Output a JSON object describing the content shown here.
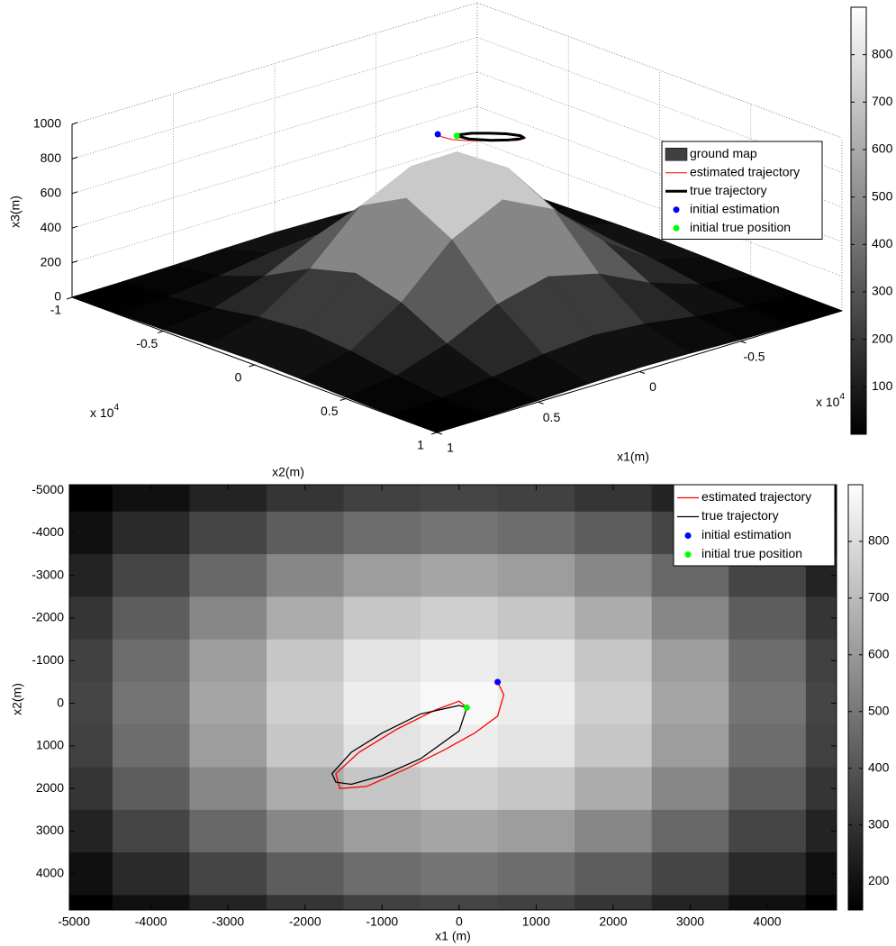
{
  "chart_data": [
    {
      "type": "surface3d",
      "xlabel": "x1(m)",
      "ylabel": "x2(m)",
      "zlabel": "x3(m)",
      "xlim": [
        -1,
        1
      ],
      "ylim": [
        -1,
        1
      ],
      "zlim": [
        0,
        1000
      ],
      "xticks": [
        -0.5,
        0,
        0.5,
        1
      ],
      "yticks": [
        -1,
        -0.5,
        0,
        0.5,
        1
      ],
      "zticks": [
        0,
        200,
        400,
        600,
        800,
        1000
      ],
      "x_multiplier": {
        "base": "x 10",
        "exponent": 4
      },
      "y_multiplier": {
        "base": "x 10",
        "exponent": 4
      },
      "clim": [
        0,
        900
      ],
      "cticks": [
        100,
        200,
        300,
        400,
        500,
        600,
        700,
        800
      ],
      "grid": true,
      "legend": "right",
      "surface": {
        "name": "ground map",
        "color": "#404040",
        "x": [
          -1,
          -0.75,
          -0.5,
          -0.25,
          0,
          0.25,
          0.5,
          0.75,
          1
        ],
        "y": [
          -1,
          -0.75,
          -0.5,
          -0.25,
          0,
          0.25,
          0.5,
          0.75,
          1
        ],
        "z": [
          [
            1,
            3,
            9,
            18,
            23,
            18,
            9,
            3,
            1
          ],
          [
            3,
            14,
            45,
            90,
            113,
            90,
            45,
            14,
            3
          ],
          [
            9,
            45,
            142,
            282,
            354,
            282,
            142,
            45,
            9
          ],
          [
            18,
            90,
            282,
            558,
            700,
            558,
            282,
            90,
            18
          ],
          [
            23,
            113,
            354,
            700,
            880,
            700,
            354,
            113,
            23
          ],
          [
            18,
            90,
            282,
            558,
            700,
            558,
            282,
            90,
            18
          ],
          [
            9,
            45,
            142,
            282,
            354,
            282,
            142,
            45,
            9
          ],
          [
            3,
            14,
            45,
            90,
            113,
            90,
            45,
            14,
            3
          ],
          [
            1,
            3,
            9,
            18,
            23,
            18,
            9,
            3,
            1
          ]
        ]
      },
      "series": [
        {
          "name": "estimated trajectory",
          "color": "#ff0000",
          "linewidth": 1,
          "x": [
            0.05,
            0.058,
            0.05,
            0.02,
            -0.02,
            -0.07,
            -0.12,
            -0.155,
            -0.16,
            -0.13,
            -0.08,
            -0.03,
            0,
            0.01
          ],
          "y": [
            -0.05,
            -0.02,
            0.03,
            0.07,
            0.11,
            0.155,
            0.195,
            0.2,
            0.165,
            0.115,
            0.06,
            0.015,
            -0.005,
            0.01
          ],
          "z": [
            980,
            980,
            980,
            980,
            980,
            980,
            980,
            980,
            980,
            980,
            980,
            980,
            980,
            980
          ]
        },
        {
          "name": "true trajectory",
          "color": "#000000",
          "linewidth": 3,
          "x": [
            0.01,
            0,
            -0.05,
            -0.1,
            -0.14,
            -0.165,
            -0.16,
            -0.14,
            -0.1,
            -0.05,
            0,
            0.01
          ],
          "y": [
            0.01,
            0.005,
            0.025,
            0.07,
            0.115,
            0.165,
            0.185,
            0.19,
            0.17,
            0.13,
            0.065,
            0.01
          ],
          "z": [
            980,
            980,
            980,
            980,
            980,
            980,
            980,
            980,
            980,
            980,
            980,
            980
          ]
        },
        {
          "name": "initial estimation",
          "color": "#0000ff",
          "x": [
            0.05
          ],
          "y": [
            -0.05
          ],
          "z": [
            980
          ]
        },
        {
          "name": "initial true position",
          "color": "#00ff00",
          "x": [
            0.01
          ],
          "y": [
            0.01
          ],
          "z": [
            980
          ]
        }
      ]
    },
    {
      "type": "heatmap",
      "xlabel": "x1 (m)",
      "ylabel": "x2(m)",
      "xlim": [
        -5060,
        4900
      ],
      "ylim": [
        -5130,
        4850
      ],
      "y_reverse": true,
      "xticks": [
        -5000,
        -4000,
        -3000,
        -2000,
        -1000,
        0,
        1000,
        2000,
        3000,
        4000
      ],
      "yticks": [
        -5000,
        -4000,
        -3000,
        -2000,
        -1000,
        0,
        1000,
        2000,
        3000,
        4000
      ],
      "clim": [
        150,
        900
      ],
      "cticks": [
        200,
        300,
        400,
        500,
        600,
        700,
        800
      ],
      "legend": "upper right",
      "image": {
        "x": [
          -5000,
          -4000,
          -3000,
          -2000,
          -1000,
          0,
          1000,
          2000,
          3000,
          4000,
          5000
        ],
        "y": [
          -5000,
          -4000,
          -3000,
          -2000,
          -1000,
          0,
          1000,
          2000,
          3000,
          4000,
          5000
        ],
        "z": [
          [
            142,
            197,
            254,
            305,
            340,
            353,
            340,
            305,
            254,
            197,
            142
          ],
          [
            196,
            273,
            353,
            423,
            472,
            490,
            472,
            423,
            353,
            273,
            196
          ],
          [
            254,
            353,
            456,
            548,
            611,
            634,
            611,
            548,
            456,
            353,
            254
          ],
          [
            305,
            423,
            548,
            657,
            733,
            760,
            733,
            657,
            548,
            423,
            305
          ],
          [
            340,
            472,
            611,
            733,
            818,
            848,
            818,
            733,
            611,
            472,
            340
          ],
          [
            353,
            490,
            634,
            760,
            848,
            880,
            848,
            760,
            634,
            490,
            353
          ],
          [
            340,
            472,
            611,
            733,
            818,
            848,
            818,
            733,
            611,
            472,
            340
          ],
          [
            305,
            423,
            548,
            657,
            733,
            760,
            733,
            657,
            548,
            423,
            305
          ],
          [
            254,
            353,
            456,
            548,
            611,
            634,
            611,
            548,
            456,
            353,
            254
          ],
          [
            196,
            273,
            353,
            423,
            472,
            490,
            472,
            423,
            353,
            273,
            196
          ],
          [
            142,
            197,
            254,
            305,
            340,
            353,
            340,
            305,
            254,
            197,
            142
          ]
        ]
      },
      "series": [
        {
          "name": "estimated trajectory",
          "color": "#ff0000",
          "linewidth": 1.3,
          "x": [
            500,
            580,
            500,
            200,
            -200,
            -700,
            -1200,
            -1550,
            -1600,
            -1300,
            -800,
            -300,
            0,
            100
          ],
          "y": [
            -500,
            -200,
            300,
            700,
            1100,
            1550,
            1950,
            2000,
            1650,
            1150,
            600,
            150,
            -50,
            100
          ]
        },
        {
          "name": "true trajectory",
          "color": "#000000",
          "linewidth": 1.3,
          "x": [
            100,
            0,
            -500,
            -1000,
            -1400,
            -1650,
            -1600,
            -1400,
            -1000,
            -500,
            0,
            100
          ],
          "y": [
            100,
            50,
            250,
            700,
            1150,
            1650,
            1850,
            1900,
            1700,
            1300,
            650,
            100
          ]
        },
        {
          "name": "initial estimation",
          "color": "#0000ff",
          "x": [
            500
          ],
          "y": [
            -500
          ]
        },
        {
          "name": "initial true position",
          "color": "#00ff00",
          "x": [
            100
          ],
          "y": [
            100
          ]
        }
      ]
    }
  ]
}
